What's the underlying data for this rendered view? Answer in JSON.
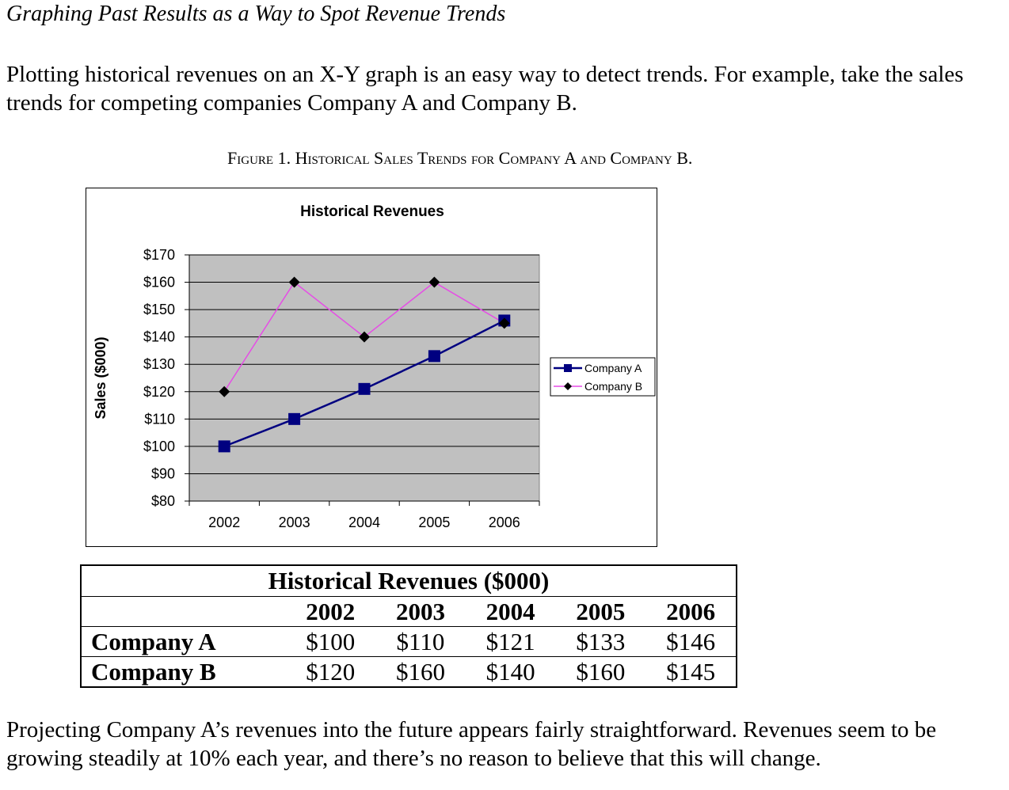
{
  "doc": {
    "heading": "Graphing Past Results as a Way to Spot Revenue Trends",
    "intro": "Plotting historical revenues on an X-Y graph is an easy way to detect trends. For example, take the sales trends for competing companies Company A and Company B.",
    "figure_caption": "Figure 1. Historical Sales Trends for Company A and Company B.",
    "closing": "Projecting Company A’s revenues into the future appears fairly straightforward. Revenues seem to be growing steadily at 10% each year, and there’s no reason to believe that this will change."
  },
  "chart_data": {
    "type": "line",
    "title": "Historical Revenues",
    "xlabel": "",
    "ylabel": "Sales ($000)",
    "categories": [
      "2002",
      "2003",
      "2004",
      "2005",
      "2006"
    ],
    "ylim": [
      80,
      170
    ],
    "yticks": [
      "$80",
      "$90",
      "$100",
      "$110",
      "$120",
      "$130",
      "$140",
      "$150",
      "$160",
      "$170"
    ],
    "grid": true,
    "legend_position": "right",
    "series": [
      {
        "name": "Company A",
        "values": [
          100,
          110,
          121,
          133,
          146
        ],
        "color": "#000080",
        "marker": "square"
      },
      {
        "name": "Company B",
        "values": [
          120,
          160,
          140,
          160,
          145
        ],
        "color": "#e64ce6",
        "marker": "diamond"
      }
    ],
    "plot_background": "#c0c0c0"
  },
  "table": {
    "title": "Historical Revenues ($000)",
    "years": [
      "2002",
      "2003",
      "2004",
      "2005",
      "2006"
    ],
    "rows": [
      {
        "label": "Company A",
        "values": [
          "$100",
          "$110",
          "$121",
          "$133",
          "$146"
        ]
      },
      {
        "label": "Company B",
        "values": [
          "$120",
          "$160",
          "$140",
          "$160",
          "$145"
        ]
      }
    ]
  }
}
